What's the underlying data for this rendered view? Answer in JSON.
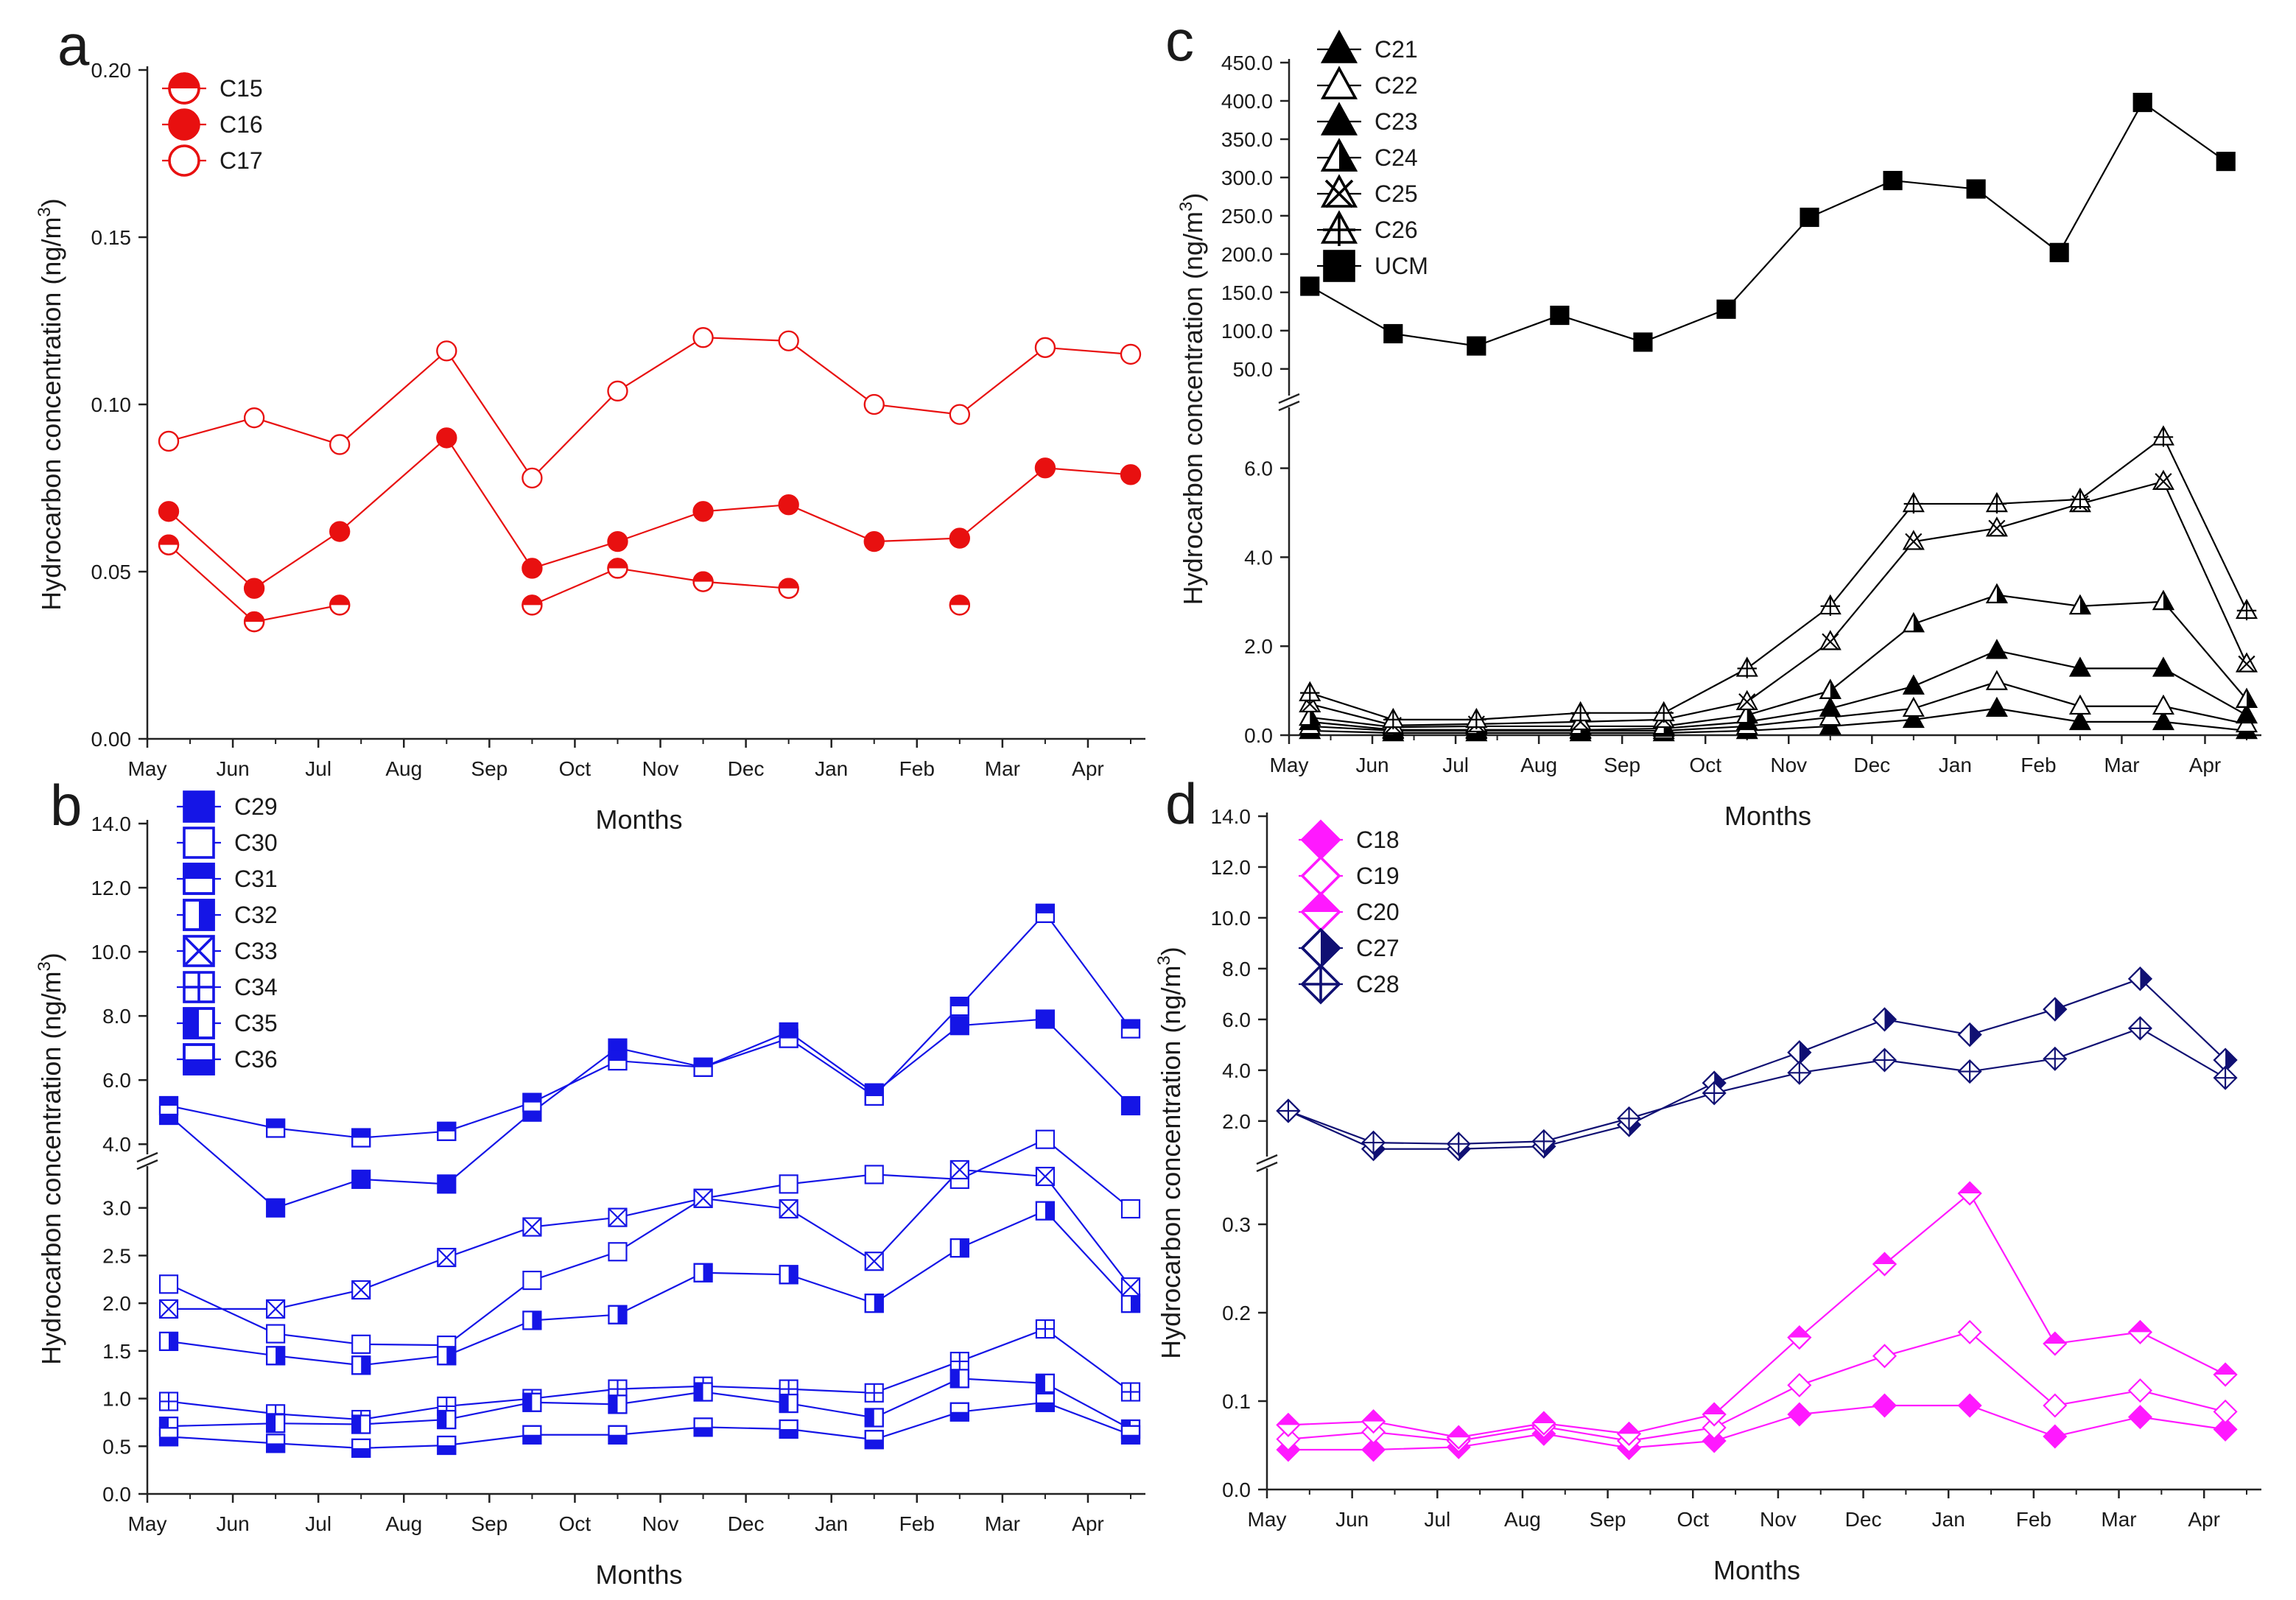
{
  "chart_data": [
    {
      "panel": "a",
      "type": "line",
      "xlabel": "Months",
      "ylabel": "Hydrocarbon concentration (ng/m",
      "ylabel_sup": "3",
      "ylabel_close": ")",
      "x_ticks": [
        "May",
        "Jun",
        "Jul",
        "Aug",
        "Sep",
        "Oct",
        "Nov",
        "Dec",
        "Jan",
        "Feb",
        "Mar",
        "Apr"
      ],
      "x_range": [
        0,
        11.5
      ],
      "y_range": [
        0,
        0.2
      ],
      "y_ticks": [
        0,
        0.05,
        0.1,
        0.15,
        0.2
      ],
      "y_tick_labels": [
        "0.00",
        "0.05",
        "0.10",
        "0.15",
        "0.20"
      ],
      "color": "#e81010",
      "series": [
        {
          "name": "C15",
          "marker": "half-top",
          "x": [
            0.25,
            1.25,
            2.25,
            4.5,
            5.5,
            6.5,
            7.5,
            9.5
          ],
          "y": [
            0.058,
            0.035,
            0.04,
            0.04,
            0.051,
            0.047,
            0.045,
            0.04
          ],
          "connected": [
            [
              0,
              1,
              2
            ],
            [
              3,
              4,
              5,
              6
            ],
            [
              7
            ]
          ]
        },
        {
          "name": "C16",
          "marker": "filled-circle",
          "x": [
            0.25,
            1.25,
            2.25,
            3.5,
            4.5,
            5.5,
            6.5,
            7.5,
            8.5,
            9.5,
            10.5,
            11.5
          ],
          "y": [
            0.068,
            0.045,
            0.062,
            0.09,
            0.051,
            0.059,
            0.068,
            0.07,
            0.059,
            0.06,
            0.081,
            0.079
          ]
        },
        {
          "name": "C17",
          "marker": "open-circle",
          "x": [
            0.25,
            1.25,
            2.25,
            3.5,
            4.5,
            5.5,
            6.5,
            7.5,
            8.5,
            9.5,
            10.5,
            11.5
          ],
          "y": [
            0.089,
            0.096,
            0.088,
            0.116,
            0.078,
            0.104,
            0.12,
            0.119,
            0.1,
            0.097,
            0.117,
            0.115
          ]
        }
      ]
    },
    {
      "panel": "b",
      "type": "line",
      "xlabel": "Months",
      "ylabel": "Hydrocarbon concentration (ng/m",
      "ylabel_sup": "3",
      "ylabel_close": ")",
      "x_ticks": [
        "May",
        "Jun",
        "Jul",
        "Aug",
        "Sep",
        "Oct",
        "Nov",
        "Dec",
        "Jan",
        "Feb",
        "Mar",
        "Apr"
      ],
      "x_range": [
        0,
        11.5
      ],
      "y_range_lower": [
        0,
        3.5
      ],
      "y_range_upper": [
        3.5,
        14
      ],
      "y_ticks_lower": [
        0,
        0.5,
        1,
        1.5,
        2,
        2.5,
        3
      ],
      "y_tick_labels_lower": [
        "0.0",
        "0.5",
        "1.0",
        "1.5",
        "2.0",
        "2.5",
        "3.0"
      ],
      "y_ticks_upper": [
        4,
        6,
        8,
        10,
        12,
        14
      ],
      "y_tick_labels_upper": [
        "4.0",
        "6.0",
        "8.0",
        "10.0",
        "12.0",
        "14.0"
      ],
      "color": "#1515e6",
      "series": [
        {
          "name": "C29",
          "marker": "filled-square",
          "x": [
            0.25,
            1.5,
            2.5,
            3.5,
            4.5,
            5.5,
            6.5,
            7.5,
            8.5,
            9.5,
            10.5,
            11.5
          ],
          "y": [
            4.9,
            3.0,
            3.3,
            3.25,
            5.0,
            7.0,
            6.4,
            7.5,
            5.6,
            7.7,
            7.9,
            5.2
          ]
        },
        {
          "name": "C30",
          "marker": "open-square",
          "x": [
            0.25,
            1.5,
            2.5,
            3.5,
            4.5,
            5.5,
            6.5,
            7.5,
            8.5,
            9.5,
            10.5,
            11.5
          ],
          "y": [
            2.2,
            1.68,
            1.57,
            1.56,
            2.24,
            2.54,
            3.1,
            3.25,
            3.35,
            3.3,
            4.15,
            2.99
          ]
        },
        {
          "name": "C31",
          "marker": "half-top",
          "x": [
            0.25,
            1.5,
            2.5,
            3.5,
            4.5,
            5.5,
            6.5,
            7.5,
            8.5,
            9.5,
            10.5,
            11.5
          ],
          "y": [
            5.2,
            4.5,
            4.2,
            4.4,
            5.3,
            6.6,
            6.4,
            7.3,
            5.5,
            8.3,
            11.2,
            7.6
          ]
        },
        {
          "name": "C32",
          "marker": "half-right",
          "x": [
            0.25,
            1.5,
            2.5,
            3.5,
            4.5,
            5.5,
            6.5,
            7.5,
            8.5,
            9.5,
            10.5,
            11.5
          ],
          "y": [
            1.6,
            1.45,
            1.35,
            1.45,
            1.82,
            1.88,
            2.32,
            2.3,
            2.0,
            2.58,
            2.97,
            2.0
          ]
        },
        {
          "name": "C33",
          "marker": "x-square",
          "x": [
            0.25,
            1.5,
            2.5,
            3.5,
            4.5,
            5.5,
            6.5,
            7.5,
            8.5,
            9.5,
            10.5,
            11.5
          ],
          "y": [
            1.94,
            1.94,
            2.14,
            2.48,
            2.8,
            2.9,
            3.1,
            2.99,
            2.44,
            3.4,
            3.33,
            2.17
          ]
        },
        {
          "name": "C34",
          "marker": "plus-square",
          "x": [
            0.25,
            1.5,
            2.5,
            3.5,
            4.5,
            5.5,
            6.5,
            7.5,
            8.5,
            9.5,
            10.5,
            11.5
          ],
          "y": [
            0.97,
            0.84,
            0.78,
            0.92,
            1.0,
            1.1,
            1.13,
            1.1,
            1.06,
            1.39,
            1.73,
            1.07
          ]
        },
        {
          "name": "C35",
          "marker": "half-left",
          "x": [
            0.25,
            1.5,
            2.5,
            3.5,
            4.5,
            5.5,
            6.5,
            7.5,
            8.5,
            9.5,
            10.5,
            11.5
          ],
          "y": [
            0.71,
            0.74,
            0.73,
            0.78,
            0.96,
            0.94,
            1.07,
            0.95,
            0.8,
            1.21,
            1.16,
            0.68
          ]
        },
        {
          "name": "C36",
          "marker": "half-bottom",
          "x": [
            0.25,
            1.5,
            2.5,
            3.5,
            4.5,
            5.5,
            6.5,
            7.5,
            8.5,
            9.5,
            10.5,
            11.5
          ],
          "y": [
            0.6,
            0.53,
            0.48,
            0.51,
            0.62,
            0.62,
            0.7,
            0.68,
            0.57,
            0.86,
            0.96,
            0.62
          ]
        }
      ]
    },
    {
      "panel": "c",
      "type": "line",
      "xlabel": "Months",
      "ylabel": "Hydrocarbon concentration (ng/m",
      "ylabel_sup": "3",
      "ylabel_close": ")",
      "x_ticks": [
        "May",
        "Jun",
        "Jul",
        "Aug",
        "Sep",
        "Oct",
        "Nov",
        "Dec",
        "Jan",
        "Feb",
        "Mar",
        "Apr"
      ],
      "x_range": [
        0,
        11.5
      ],
      "y_range_lower": [
        0,
        7.5
      ],
      "y_range_upper": [
        7.5,
        450
      ],
      "y_ticks_lower": [
        0,
        2,
        4,
        6
      ],
      "y_tick_labels_lower": [
        "0.0",
        "2.0",
        "4.0",
        "6.0"
      ],
      "y_ticks_upper": [
        50,
        100,
        150,
        200,
        250,
        300,
        350,
        400,
        450
      ],
      "y_tick_labels_upper": [
        "50.0",
        "100.0",
        "150.0",
        "200.0",
        "250.0",
        "300.0",
        "350.0",
        "400.0",
        "450.0"
      ],
      "color": "#000000",
      "series": [
        {
          "name": "C21",
          "marker": "filled-triangle",
          "x": [
            0.25,
            1.25,
            2.25,
            3.5,
            4.5,
            5.5,
            6.5,
            7.5,
            8.5,
            9.5,
            10.5,
            11.5
          ],
          "y": [
            0.1,
            0.05,
            0.05,
            0.05,
            0.05,
            0.1,
            0.2,
            0.35,
            0.6,
            0.3,
            0.3,
            0.1
          ]
        },
        {
          "name": "C22",
          "marker": "open-triangle",
          "x": [
            0.25,
            1.25,
            2.25,
            3.5,
            4.5,
            5.5,
            6.5,
            7.5,
            8.5,
            9.5,
            10.5,
            11.5
          ],
          "y": [
            0.2,
            0.1,
            0.1,
            0.1,
            0.1,
            0.2,
            0.4,
            0.6,
            1.2,
            0.65,
            0.65,
            0.25
          ]
        },
        {
          "name": "C23",
          "marker": "filled-triangle",
          "x": [
            0.25,
            1.25,
            2.25,
            3.5,
            4.5,
            5.5,
            6.5,
            7.5,
            8.5,
            9.5,
            10.5,
            11.5
          ],
          "y": [
            0.3,
            0.12,
            0.12,
            0.12,
            0.15,
            0.3,
            0.6,
            1.1,
            1.9,
            1.5,
            1.5,
            0.45
          ]
        },
        {
          "name": "C24",
          "marker": "half-triangle",
          "x": [
            0.25,
            1.25,
            2.25,
            3.5,
            4.5,
            5.5,
            6.5,
            7.5,
            8.5,
            9.5,
            10.5,
            11.5
          ],
          "y": [
            0.4,
            0.18,
            0.2,
            0.2,
            0.2,
            0.45,
            1.0,
            2.5,
            3.15,
            2.9,
            3.0,
            0.8
          ]
        },
        {
          "name": "C25",
          "marker": "x-triangle",
          "x": [
            0.25,
            1.25,
            2.25,
            3.5,
            4.5,
            5.5,
            6.5,
            7.5,
            8.5,
            9.5,
            10.5,
            11.5
          ],
          "y": [
            0.7,
            0.22,
            0.25,
            0.3,
            0.35,
            0.75,
            2.1,
            4.35,
            4.65,
            5.2,
            5.7,
            1.6
          ]
        },
        {
          "name": "C26",
          "marker": "plus-triangle",
          "x": [
            0.25,
            1.25,
            2.25,
            3.5,
            4.5,
            5.5,
            6.5,
            7.5,
            8.5,
            9.5,
            10.5,
            11.5
          ],
          "y": [
            0.95,
            0.35,
            0.35,
            0.5,
            0.5,
            1.5,
            2.9,
            5.2,
            5.2,
            5.3,
            6.7,
            2.8
          ]
        },
        {
          "name": "UCM",
          "marker": "filled-square",
          "x": [
            0.25,
            1.25,
            2.25,
            3.25,
            4.25,
            5.25,
            6.25,
            7.25,
            8.25,
            9.25,
            10.25,
            11.25
          ],
          "y": [
            158,
            96,
            80,
            120,
            85,
            128,
            248,
            296,
            285,
            202,
            398,
            321
          ]
        }
      ]
    },
    {
      "panel": "d",
      "type": "line",
      "xlabel": "Months",
      "ylabel": "Hydrocarbon concentration (ng/m",
      "ylabel_sup": "3",
      "ylabel_close": ")",
      "x_ticks": [
        "May",
        "Jun",
        "Jul",
        "Aug",
        "Sep",
        "Oct",
        "Nov",
        "Dec",
        "Jan",
        "Feb",
        "Mar",
        "Apr"
      ],
      "x_range": [
        0,
        11.5
      ],
      "y_range_lower": [
        0,
        0.37
      ],
      "y_range_upper": [
        0.37,
        14
      ],
      "y_ticks_lower": [
        0,
        0.1,
        0.2,
        0.3
      ],
      "y_tick_labels_lower": [
        "0.0",
        "0.1",
        "0.2",
        "0.3"
      ],
      "y_ticks_upper": [
        2,
        4,
        6,
        8,
        10,
        12,
        14
      ],
      "y_tick_labels_upper": [
        "2.0",
        "4.0",
        "6.0",
        "8.0",
        "10.0",
        "12.0",
        "14.0"
      ],
      "series": [
        {
          "name": "C18",
          "marker": "filled-diamond",
          "color": "#ff19ff",
          "x": [
            0.25,
            1.25,
            2.25,
            3.25,
            4.25,
            5.25,
            6.25,
            7.25,
            8.25,
            9.25,
            10.25,
            11.25
          ],
          "y": [
            0.045,
            0.045,
            0.048,
            0.063,
            0.047,
            0.055,
            0.085,
            0.095,
            0.095,
            0.06,
            0.082,
            0.068
          ]
        },
        {
          "name": "C19",
          "marker": "open-diamond",
          "color": "#ff19ff",
          "x": [
            0.25,
            1.25,
            2.25,
            3.25,
            4.25,
            5.25,
            6.25,
            7.25,
            8.25,
            9.25,
            10.25,
            11.25
          ],
          "y": [
            0.057,
            0.065,
            0.055,
            0.071,
            0.055,
            0.07,
            0.118,
            0.151,
            0.178,
            0.095,
            0.112,
            0.088
          ]
        },
        {
          "name": "C20",
          "marker": "half-top-diamond",
          "color": "#ff19ff",
          "x": [
            0.25,
            1.25,
            2.25,
            3.25,
            4.25,
            5.25,
            6.25,
            7.25,
            8.25,
            9.25,
            10.25,
            11.25
          ],
          "y": [
            0.073,
            0.077,
            0.059,
            0.075,
            0.063,
            0.085,
            0.172,
            0.255,
            0.335,
            0.165,
            0.178,
            0.13
          ]
        },
        {
          "name": "C27",
          "marker": "half-right-diamond",
          "color": "#101073",
          "x": [
            0.25,
            1.25,
            2.25,
            3.25,
            4.25,
            5.25,
            6.25,
            7.25,
            8.25,
            9.25,
            10.25,
            11.25
          ],
          "y": [
            2.4,
            0.9,
            0.9,
            1.0,
            1.85,
            3.5,
            4.7,
            6.0,
            5.4,
            6.4,
            7.6,
            4.4
          ]
        },
        {
          "name": "C28",
          "marker": "plus-diamond",
          "color": "#101073",
          "x": [
            0.25,
            1.25,
            2.25,
            3.25,
            4.25,
            5.25,
            6.25,
            7.25,
            8.25,
            9.25,
            10.25,
            11.25
          ],
          "y": [
            2.4,
            1.15,
            1.1,
            1.2,
            2.1,
            3.1,
            3.9,
            4.4,
            3.95,
            4.45,
            5.65,
            3.7
          ]
        }
      ]
    }
  ]
}
